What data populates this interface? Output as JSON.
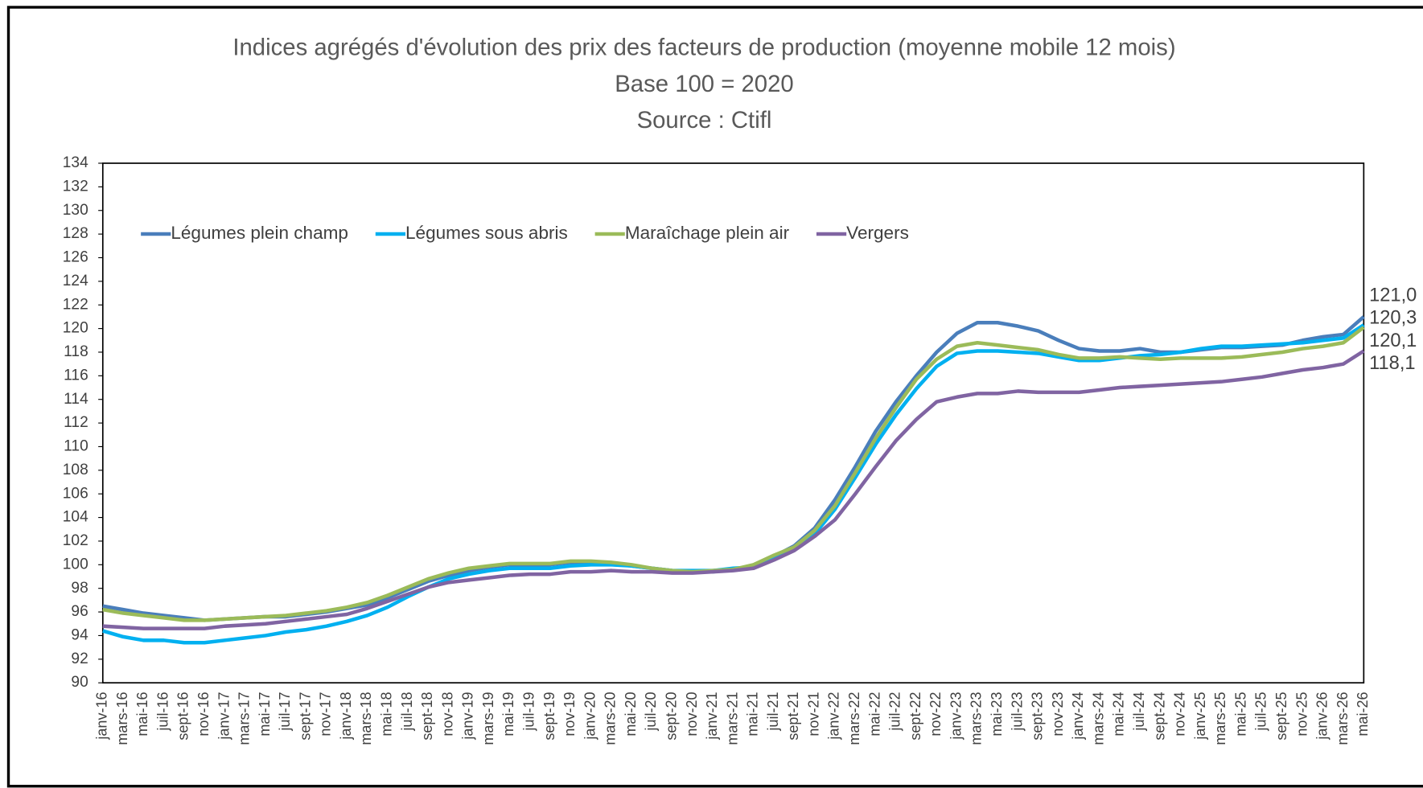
{
  "chart_data": {
    "type": "line",
    "title": "Indices agrégés d'évolution des prix des facteurs de production (moyenne mobile 12 mois)",
    "subtitle": "Base 100 = 2020",
    "source": "Source : Ctifl",
    "categories": [
      "janv-16",
      "mars-16",
      "mai-16",
      "juil-16",
      "sept-16",
      "nov-16",
      "janv-17",
      "mars-17",
      "mai-17",
      "juil-17",
      "sept-17",
      "nov-17",
      "janv-18",
      "mars-18",
      "mai-18",
      "juil-18",
      "sept-18",
      "nov-18",
      "janv-19",
      "mars-19",
      "mai-19",
      "juil-19",
      "sept-19",
      "nov-19",
      "janv-20",
      "mars-20",
      "mai-20",
      "juil-20",
      "sept-20",
      "nov-20",
      "janv-21",
      "mars-21",
      "mai-21",
      "juil-21",
      "sept-21",
      "nov-21",
      "janv-22",
      "mars-22",
      "mai-22",
      "juil-22",
      "sept-22",
      "nov-22",
      "janv-23",
      "mars-23",
      "mai-23",
      "juil-23",
      "sept-23",
      "nov-23",
      "janv-24",
      "mars-24",
      "mai-24",
      "juil-24",
      "sept-24",
      "nov-24",
      "janv-25",
      "mars-25",
      "mai-25",
      "juil-25",
      "sept-25",
      "nov-25",
      "janv-26",
      "mars-26",
      "mai-26"
    ],
    "series": [
      {
        "name": "Légumes plein champ",
        "color": "#4a7ebb",
        "values": [
          96.5,
          96.2,
          95.9,
          95.7,
          95.5,
          95.3,
          95.4,
          95.5,
          95.6,
          95.6,
          95.8,
          96.0,
          96.3,
          96.6,
          97.2,
          97.9,
          98.6,
          99.1,
          99.5,
          99.8,
          100.0,
          100.0,
          100.0,
          100.2,
          100.2,
          100.1,
          99.9,
          99.7,
          99.5,
          99.4,
          99.4,
          99.6,
          99.9,
          100.7,
          101.6,
          103.1,
          105.5,
          108.3,
          111.3,
          113.8,
          116.0,
          118.0,
          119.6,
          120.5,
          120.5,
          120.2,
          119.8,
          119.0,
          118.3,
          118.1,
          118.1,
          118.3,
          118.0,
          118.0,
          118.2,
          118.4,
          118.4,
          118.5,
          118.6,
          119.0,
          119.3,
          119.5,
          121.0
        ],
        "value_labels": [
          null,
          null,
          null,
          null,
          null,
          null,
          null,
          null,
          null,
          null,
          null,
          null,
          null,
          null,
          null,
          null,
          null,
          null,
          null,
          null,
          null,
          null,
          null,
          null,
          null,
          null,
          null,
          null,
          null,
          null,
          null,
          null,
          null,
          null,
          null,
          null,
          null,
          null,
          null,
          null,
          null,
          null,
          null,
          null,
          null,
          null,
          null,
          null,
          null,
          null,
          null,
          null,
          null,
          null,
          null,
          null,
          null,
          null,
          null,
          null,
          null,
          null,
          "121,0"
        ]
      },
      {
        "name": "Légumes sous abris",
        "color": "#00b0f0",
        "values": [
          94.4,
          93.9,
          93.6,
          93.6,
          93.4,
          93.4,
          93.6,
          93.8,
          94.0,
          94.3,
          94.5,
          94.8,
          95.2,
          95.7,
          96.4,
          97.3,
          98.1,
          98.8,
          99.2,
          99.5,
          99.7,
          99.7,
          99.7,
          99.9,
          100.0,
          100.0,
          99.9,
          99.7,
          99.5,
          99.5,
          99.5,
          99.7,
          99.8,
          100.5,
          101.3,
          102.6,
          104.7,
          107.4,
          110.2,
          112.7,
          114.9,
          116.8,
          117.9,
          118.1,
          118.1,
          118.0,
          117.9,
          117.6,
          117.3,
          117.3,
          117.5,
          117.7,
          117.8,
          118.0,
          118.3,
          118.5,
          118.5,
          118.6,
          118.7,
          118.8,
          119.0,
          119.2,
          120.3
        ],
        "value_labels": [
          null,
          null,
          null,
          null,
          null,
          null,
          null,
          null,
          null,
          null,
          null,
          null,
          null,
          null,
          null,
          null,
          null,
          null,
          null,
          null,
          null,
          null,
          null,
          null,
          null,
          null,
          null,
          null,
          null,
          null,
          null,
          null,
          null,
          null,
          null,
          null,
          null,
          null,
          null,
          null,
          null,
          null,
          null,
          null,
          null,
          null,
          null,
          null,
          null,
          null,
          null,
          null,
          null,
          null,
          null,
          null,
          null,
          null,
          null,
          null,
          null,
          null,
          "120,3"
        ]
      },
      {
        "name": "Maraîchage plein air",
        "color": "#9bbb59",
        "values": [
          96.2,
          95.9,
          95.7,
          95.5,
          95.3,
          95.3,
          95.4,
          95.5,
          95.6,
          95.7,
          95.9,
          96.1,
          96.4,
          96.8,
          97.4,
          98.1,
          98.8,
          99.3,
          99.7,
          99.9,
          100.1,
          100.1,
          100.1,
          100.3,
          100.3,
          100.2,
          100.0,
          99.7,
          99.5,
          99.4,
          99.5,
          99.6,
          100.0,
          100.8,
          101.5,
          102.9,
          105.0,
          107.8,
          110.7,
          113.3,
          115.7,
          117.4,
          118.5,
          118.8,
          118.6,
          118.4,
          118.2,
          117.8,
          117.5,
          117.5,
          117.6,
          117.5,
          117.4,
          117.5,
          117.5,
          117.5,
          117.6,
          117.8,
          118.0,
          118.3,
          118.5,
          118.8,
          120.1
        ],
        "value_labels": [
          null,
          null,
          null,
          null,
          null,
          null,
          null,
          null,
          null,
          null,
          null,
          null,
          null,
          null,
          null,
          null,
          null,
          null,
          null,
          null,
          null,
          null,
          null,
          null,
          null,
          null,
          null,
          null,
          null,
          null,
          null,
          null,
          null,
          null,
          null,
          null,
          null,
          null,
          null,
          null,
          null,
          null,
          null,
          null,
          null,
          null,
          null,
          null,
          null,
          null,
          null,
          null,
          null,
          null,
          null,
          null,
          null,
          null,
          null,
          null,
          null,
          null,
          "120,1"
        ]
      },
      {
        "name": "Vergers",
        "color": "#8064a2",
        "values": [
          94.8,
          94.7,
          94.6,
          94.6,
          94.6,
          94.6,
          94.8,
          94.9,
          95.0,
          95.2,
          95.4,
          95.6,
          95.8,
          96.3,
          96.9,
          97.5,
          98.1,
          98.5,
          98.7,
          98.9,
          99.1,
          99.2,
          99.2,
          99.4,
          99.4,
          99.5,
          99.4,
          99.4,
          99.3,
          99.3,
          99.4,
          99.5,
          99.7,
          100.4,
          101.2,
          102.4,
          103.8,
          106.0,
          108.3,
          110.5,
          112.3,
          113.8,
          114.2,
          114.5,
          114.5,
          114.7,
          114.6,
          114.6,
          114.6,
          114.8,
          115.0,
          115.1,
          115.2,
          115.3,
          115.4,
          115.5,
          115.7,
          115.9,
          116.2,
          116.5,
          116.7,
          117.0,
          118.1
        ],
        "value_labels": [
          null,
          null,
          null,
          null,
          null,
          null,
          null,
          null,
          null,
          null,
          null,
          null,
          null,
          null,
          null,
          null,
          null,
          null,
          null,
          null,
          null,
          null,
          null,
          null,
          null,
          null,
          null,
          null,
          null,
          null,
          null,
          null,
          null,
          null,
          null,
          null,
          null,
          null,
          null,
          null,
          null,
          null,
          null,
          null,
          null,
          null,
          null,
          null,
          null,
          null,
          null,
          null,
          null,
          null,
          null,
          null,
          null,
          null,
          null,
          null,
          null,
          null,
          "118,1"
        ]
      }
    ],
    "ylim": [
      90,
      134
    ],
    "yticks": [
      90,
      92,
      94,
      96,
      98,
      100,
      102,
      104,
      106,
      108,
      110,
      112,
      114,
      116,
      118,
      120,
      122,
      124,
      126,
      128,
      130,
      132,
      134
    ],
    "grid": false,
    "legend": "top-left"
  }
}
